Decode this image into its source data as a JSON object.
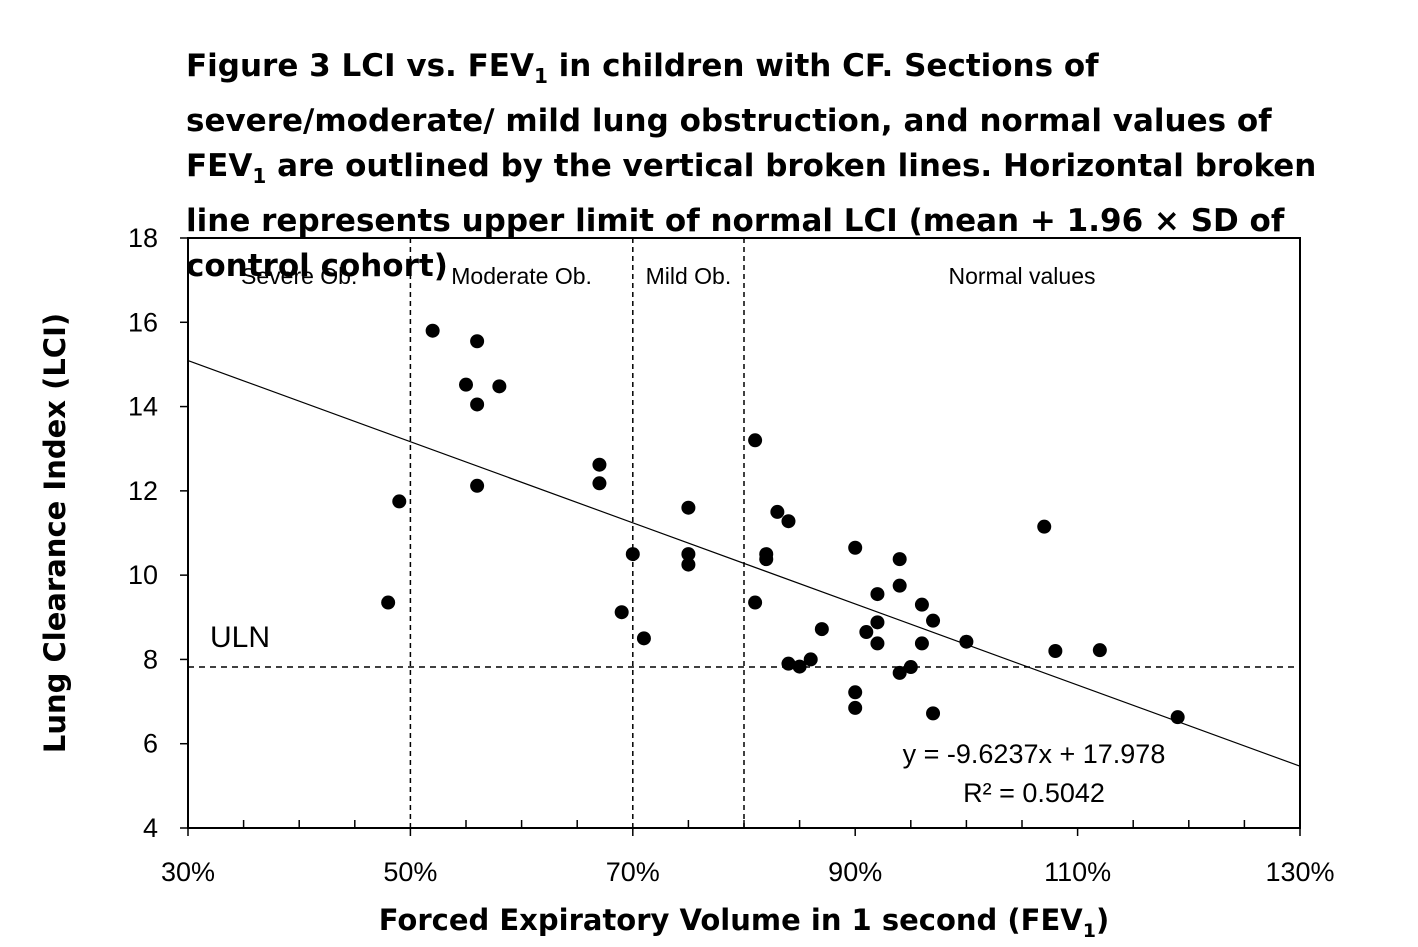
{
  "title": {
    "part1": "Figure 3 LCI vs. FEV",
    "sub1": "1",
    "part2": " in children with CF. Sections of severe/moderate/ mild lung obstruction, and normal values of FEV",
    "sub2": "1",
    "part3": " are outlined by the vertical broken lines. Horizontal broken line represents upper limit of normal LCI (mean + 1.96 × SD of control cohort)"
  },
  "chart_data": {
    "type": "scatter",
    "xlabel": "Forced Expiratory Volume in 1 second (FEV",
    "xlabel_sub": "1",
    "xlabel_end": ")",
    "ylabel": "Lung Clearance Index (LCI)",
    "xlim": [
      0.3,
      1.3
    ],
    "ylim": [
      4,
      18
    ],
    "x_ticks": [
      0.3,
      0.5,
      0.7,
      0.9,
      1.1,
      1.3
    ],
    "x_tick_labels": [
      "30%",
      "50%",
      "70%",
      "90%",
      "110%",
      "130%"
    ],
    "y_ticks": [
      4,
      6,
      8,
      10,
      12,
      14,
      16,
      18
    ],
    "y_tick_labels": [
      "4",
      "6",
      "8",
      "10",
      "12",
      "14",
      "16",
      "18"
    ],
    "grid": false,
    "series": [
      {
        "marker": "filled-circle",
        "color": "#000000",
        "points": [
          [
            0.48,
            9.35
          ],
          [
            0.49,
            11.75
          ],
          [
            0.52,
            15.8
          ],
          [
            0.55,
            14.52
          ],
          [
            0.56,
            15.55
          ],
          [
            0.56,
            14.05
          ],
          [
            0.56,
            12.12
          ],
          [
            0.58,
            14.48
          ],
          [
            0.67,
            12.62
          ],
          [
            0.67,
            12.18
          ],
          [
            0.69,
            9.12
          ],
          [
            0.7,
            10.5
          ],
          [
            0.71,
            8.5
          ],
          [
            0.75,
            11.6
          ],
          [
            0.75,
            10.5
          ],
          [
            0.75,
            10.25
          ],
          [
            0.81,
            13.2
          ],
          [
            0.81,
            9.35
          ],
          [
            0.82,
            10.5
          ],
          [
            0.82,
            10.38
          ],
          [
            0.83,
            11.5
          ],
          [
            0.84,
            11.28
          ],
          [
            0.84,
            7.9
          ],
          [
            0.85,
            7.83
          ],
          [
            0.86,
            8.0
          ],
          [
            0.87,
            8.72
          ],
          [
            0.9,
            10.65
          ],
          [
            0.9,
            7.22
          ],
          [
            0.9,
            6.85
          ],
          [
            0.91,
            8.65
          ],
          [
            0.92,
            9.55
          ],
          [
            0.92,
            8.88
          ],
          [
            0.92,
            8.38
          ],
          [
            0.94,
            10.38
          ],
          [
            0.94,
            9.75
          ],
          [
            0.94,
            7.68
          ],
          [
            0.95,
            7.82
          ],
          [
            0.96,
            9.3
          ],
          [
            0.96,
            8.38
          ],
          [
            0.97,
            8.92
          ],
          [
            0.97,
            6.72
          ],
          [
            1.0,
            8.42
          ],
          [
            1.07,
            11.15
          ],
          [
            1.08,
            8.2
          ],
          [
            1.12,
            8.22
          ],
          [
            1.19,
            6.63
          ]
        ]
      }
    ],
    "trendline": {
      "slope": -9.6237,
      "intercept": 17.978
    },
    "equation_text": "y = -9.6237x + 17.978",
    "r2_text": "R² = 0.5042",
    "vertical_dashed_lines": [
      0.5,
      0.7,
      0.8
    ],
    "uln": {
      "y": 7.82,
      "label": "ULN"
    },
    "region_labels": [
      "Severe  Ob.",
      "Moderate  Ob.",
      "Mild Ob.",
      "Normal values"
    ]
  }
}
